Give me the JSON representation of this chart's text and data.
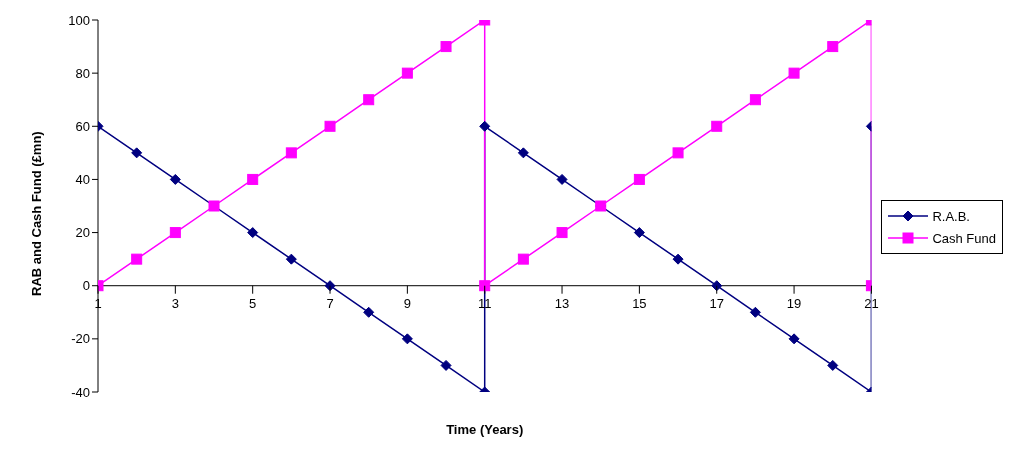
{
  "chart_data": {
    "type": "line",
    "xlabel": "Time (Years)",
    "ylabel": "RAB and Cash Fund (£mn)",
    "xlim": [
      1,
      21
    ],
    "xticks": [
      1,
      3,
      5,
      7,
      9,
      11,
      13,
      15,
      17,
      19,
      21
    ],
    "ylim": [
      -40,
      100
    ],
    "yticks": [
      -40,
      -20,
      0,
      20,
      40,
      60,
      80,
      100
    ],
    "grid": false,
    "legend": "right",
    "line_style": "solid",
    "series": [
      {
        "name": "R.A.B.",
        "color": "#000080",
        "marker": "diamond",
        "x": [
          1,
          2,
          3,
          4,
          5,
          6,
          7,
          8,
          9,
          10,
          11,
          11,
          12,
          13,
          14,
          15,
          16,
          17,
          18,
          19,
          20,
          21,
          21
        ],
        "values": [
          60,
          50,
          40,
          30,
          20,
          10,
          0,
          -10,
          -20,
          -30,
          -40,
          60,
          50,
          40,
          30,
          20,
          10,
          0,
          -10,
          -20,
          -30,
          -40,
          60
        ]
      },
      {
        "name": "Cash Fund",
        "color": "#ff00ff",
        "marker": "square",
        "x": [
          1,
          2,
          3,
          4,
          5,
          6,
          7,
          8,
          9,
          10,
          11,
          11,
          12,
          13,
          14,
          15,
          16,
          17,
          18,
          19,
          20,
          21,
          21
        ],
        "values": [
          0,
          10,
          20,
          30,
          40,
          50,
          60,
          70,
          80,
          90,
          100,
          0,
          10,
          20,
          30,
          40,
          50,
          60,
          70,
          80,
          90,
          100,
          0
        ]
      }
    ]
  }
}
